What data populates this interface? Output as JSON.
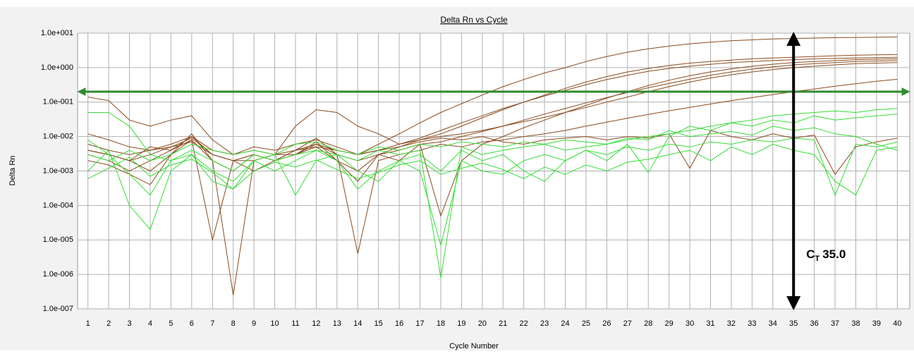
{
  "chart_data": {
    "type": "line",
    "title": "Delta Rn vs Cycle",
    "x_label": "Cycle Number",
    "y_label": "Delta Rn",
    "log_scale": true,
    "grid": true,
    "x": [
      1,
      2,
      3,
      4,
      5,
      6,
      7,
      8,
      9,
      10,
      11,
      12,
      13,
      14,
      15,
      16,
      17,
      18,
      19,
      20,
      21,
      22,
      23,
      24,
      25,
      26,
      27,
      28,
      29,
      30,
      31,
      32,
      33,
      34,
      35,
      36,
      37,
      38,
      39,
      40
    ],
    "xlim": [
      0.5,
      40.6
    ],
    "xticks": [
      1,
      2,
      3,
      4,
      5,
      6,
      7,
      8,
      9,
      10,
      11,
      12,
      13,
      14,
      15,
      16,
      17,
      18,
      19,
      20,
      21,
      22,
      23,
      24,
      25,
      26,
      27,
      28,
      29,
      30,
      31,
      32,
      33,
      34,
      35,
      36,
      37,
      38,
      39,
      40
    ],
    "ylim": [
      1e-07,
      10
    ],
    "yticks": [
      {
        "value": 10,
        "label": "1.0e+001"
      },
      {
        "value": 1,
        "label": "1.0e+000"
      },
      {
        "value": 0.1,
        "label": "1.0e-001"
      },
      {
        "value": 0.01,
        "label": "1.0e-002"
      },
      {
        "value": 0.001,
        "label": "1.0e-003"
      },
      {
        "value": 0.0001,
        "label": "1.0e-004"
      },
      {
        "value": 1e-05,
        "label": "1.0e-005"
      },
      {
        "value": 1e-06,
        "label": "1.0e-006"
      },
      {
        "value": 1e-07,
        "label": "1.0e-007"
      }
    ],
    "threshold": 0.2,
    "threshold_color": "#2e8b2e",
    "annotation": {
      "text": "C",
      "subscript": "T",
      "value_text": "35.0",
      "x": 35
    },
    "series": [
      {
        "color": "#8b4a1c",
        "values": [
          0.012,
          0.008,
          0.005,
          0.004,
          0.006,
          0.01,
          0.004,
          0.003,
          0.005,
          0.004,
          0.006,
          0.008,
          0.005,
          0.003,
          0.006,
          0.012,
          0.025,
          0.05,
          0.09,
          0.16,
          0.28,
          0.45,
          0.7,
          1.0,
          1.5,
          2.1,
          2.8,
          3.5,
          4.2,
          4.9,
          5.5,
          6.0,
          6.4,
          6.8,
          7.0,
          7.2,
          7.4,
          7.5,
          7.6,
          7.8
        ]
      },
      {
        "color": "#8b4a1c",
        "values": [
          0.004,
          0.003,
          0.002,
          0.005,
          0.004,
          0.008,
          0.002,
          0.001,
          0.003,
          0.002,
          0.004,
          0.006,
          0.003,
          0.002,
          0.003,
          0.005,
          0.008,
          0.012,
          0.02,
          0.035,
          0.06,
          0.1,
          0.16,
          0.25,
          0.38,
          0.55,
          0.75,
          0.95,
          1.15,
          1.35,
          1.5,
          1.65,
          1.8,
          1.9,
          2.0,
          2.1,
          2.2,
          2.3,
          2.35,
          2.4
        ]
      },
      {
        "color": "#8b4a1c",
        "values": [
          0.14,
          0.11,
          0.03,
          0.02,
          0.03,
          0.04,
          0.008,
          0.003,
          0.004,
          0.003,
          0.02,
          0.06,
          0.05,
          0.02,
          0.012,
          0.006,
          0.008,
          0.01,
          0.012,
          0.015,
          0.02,
          0.027,
          0.036,
          0.05,
          0.07,
          0.1,
          0.14,
          0.2,
          0.28,
          0.38,
          0.5,
          0.62,
          0.75,
          0.88,
          1.0,
          1.1,
          1.2,
          1.3,
          1.35,
          1.4
        ]
      },
      {
        "color": "#8b4a1c",
        "values": [
          0.004,
          0.003,
          0.002,
          0.001,
          0.003,
          0.012,
          0.002,
          2.5e-07,
          0.002,
          0.003,
          0.004,
          0.009,
          0.003,
          4e-06,
          0.002,
          0.003,
          0.004,
          0.006,
          0.005,
          0.007,
          0.008,
          0.01,
          0.012,
          0.015,
          0.02,
          0.026,
          0.034,
          0.044,
          0.056,
          0.07,
          0.088,
          0.11,
          0.135,
          0.165,
          0.2,
          0.24,
          0.29,
          0.34,
          0.4,
          0.46
        ]
      },
      {
        "color": "#8b4a1c",
        "values": [
          0.002,
          0.0015,
          0.0008,
          0.0004,
          0.003,
          0.008,
          1e-05,
          0.002,
          0.001,
          0.002,
          0.003,
          0.007,
          0.002,
          0.0005,
          0.003,
          0.002,
          0.006,
          5e-05,
          0.002,
          0.006,
          0.01,
          0.018,
          0.03,
          0.05,
          0.08,
          0.13,
          0.2,
          0.3,
          0.43,
          0.58,
          0.75,
          0.92,
          1.1,
          1.25,
          1.4,
          1.5,
          1.6,
          1.7,
          1.75,
          1.8
        ]
      },
      {
        "color": "#8b4a1c",
        "values": [
          0.004,
          0.003,
          0.002,
          0.003,
          0.005,
          0.007,
          0.003,
          0.002,
          0.003,
          0.002,
          0.003,
          0.006,
          0.004,
          0.003,
          0.004,
          0.005,
          0.007,
          0.009,
          0.008,
          0.01,
          0.007,
          0.006,
          0.008,
          0.009,
          0.01,
          0.008,
          0.01,
          0.009,
          0.012,
          0.0012,
          0.015,
          0.01,
          0.008,
          0.012,
          0.009,
          0.011,
          0.0008,
          0.005,
          0.007,
          0.009
        ]
      },
      {
        "color": "#8b4a1c",
        "values": [
          0.006,
          0.004,
          0.003,
          0.004,
          0.005,
          0.009,
          0.003,
          0.002,
          0.003,
          0.002,
          0.004,
          0.005,
          0.004,
          0.003,
          0.004,
          0.006,
          0.009,
          0.015,
          0.025,
          0.04,
          0.065,
          0.1,
          0.15,
          0.22,
          0.32,
          0.45,
          0.6,
          0.78,
          0.95,
          1.1,
          1.25,
          1.4,
          1.5,
          1.6,
          1.7,
          1.8,
          1.85,
          1.9,
          1.95,
          2.0
        ]
      },
      {
        "color": "#8b4a1c",
        "values": [
          0.003,
          0.002,
          0.001,
          0.002,
          0.004,
          0.01,
          0.003,
          0.002,
          0.002,
          0.003,
          0.003,
          0.005,
          0.002,
          0.001,
          0.003,
          0.004,
          0.006,
          0.007,
          0.01,
          0.014,
          0.02,
          0.03,
          0.045,
          0.065,
          0.095,
          0.135,
          0.19,
          0.26,
          0.35,
          0.46,
          0.6,
          0.75,
          0.9,
          1.05,
          1.2,
          1.3,
          1.4,
          1.5,
          1.55,
          1.6
        ]
      },
      {
        "color": "#33dd33",
        "values": [
          0.05,
          0.05,
          0.02,
          0.003,
          0.002,
          0.004,
          0.002,
          0.001,
          0.003,
          0.002,
          0.003,
          0.004,
          0.003,
          0.002,
          0.004,
          0.003,
          0.004,
          8e-07,
          0.005,
          0.003,
          0.004,
          0.005,
          0.006,
          0.004,
          0.005,
          0.006,
          0.008,
          0.01,
          0.012,
          0.015,
          0.02,
          0.025,
          0.03,
          0.04,
          0.045,
          0.05,
          0.055,
          0.05,
          0.06,
          0.065
        ]
      },
      {
        "color": "#33dd33",
        "values": [
          0.008,
          0.003,
          0.0008,
          0.0002,
          0.002,
          0.003,
          0.001,
          0.0005,
          0.002,
          0.003,
          0.0002,
          0.002,
          0.003,
          0.001,
          0.0005,
          0.002,
          0.001,
          7e-06,
          0.002,
          0.001,
          0.0008,
          0.002,
          0.003,
          0.002,
          0.004,
          0.003,
          0.005,
          0.004,
          0.006,
          0.005,
          0.007,
          0.006,
          0.008,
          0.007,
          0.009,
          0.008,
          0.0002,
          0.006,
          0.005,
          0.007
        ]
      },
      {
        "color": "#33dd33",
        "values": [
          0.001,
          0.004,
          0.0001,
          2e-05,
          0.001,
          0.003,
          0.0005,
          0.0003,
          0.002,
          0.001,
          0.002,
          0.004,
          0.002,
          0.0003,
          0.001,
          0.002,
          0.003,
          0.001,
          0.004,
          0.002,
          0.003,
          0.001,
          0.0005,
          0.002,
          0.004,
          0.002,
          0.006,
          0.0009,
          0.01,
          0.02,
          0.015,
          0.025,
          0.02,
          0.03,
          0.025,
          0.04,
          0.03,
          0.035,
          0.04,
          0.045
        ]
      },
      {
        "color": "#33dd33",
        "values": [
          0.003,
          0.002,
          0.004,
          0.002,
          0.003,
          0.006,
          0.004,
          0.003,
          0.004,
          0.003,
          0.006,
          0.007,
          0.004,
          0.003,
          0.005,
          0.004,
          0.006,
          0.005,
          0.007,
          0.006,
          0.005,
          0.007,
          0.006,
          0.008,
          0.007,
          0.006,
          0.009,
          0.008,
          0.015,
          0.01,
          0.012,
          0.014,
          0.011,
          0.02,
          0.015,
          0.018,
          0.012,
          0.01,
          0.006,
          0.004
        ]
      },
      {
        "color": "#33dd33",
        "values": [
          0.0006,
          0.0012,
          0.0025,
          0.0007,
          0.0015,
          0.0022,
          0.0009,
          0.0003,
          0.001,
          0.0018,
          0.0013,
          0.0021,
          0.0011,
          0.0006,
          0.0009,
          0.0015,
          0.002,
          0.0008,
          0.0012,
          0.0017,
          0.0011,
          0.0006,
          0.0013,
          0.0008,
          0.0015,
          0.001,
          0.0018,
          0.0022,
          0.003,
          0.004,
          0.002,
          0.005,
          0.003,
          0.006,
          0.004,
          0.003,
          0.0005,
          0.0002,
          0.004,
          0.005
        ]
      }
    ]
  }
}
